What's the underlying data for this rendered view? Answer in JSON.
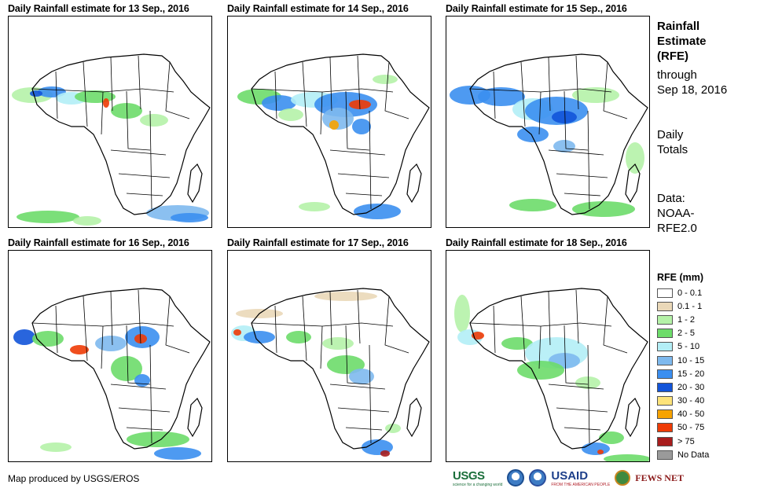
{
  "panels": [
    {
      "title": "Daily Rainfall estimate for 13 Sep., 2016"
    },
    {
      "title": "Daily Rainfall estimate for 14 Sep., 2016"
    },
    {
      "title": "Daily Rainfall estimate for 15 Sep., 2016"
    },
    {
      "title": "Daily Rainfall estimate for 16 Sep., 2016"
    },
    {
      "title": "Daily Rainfall estimate for 17 Sep., 2016"
    },
    {
      "title": "Daily Rainfall estimate for 18 Sep., 2016"
    }
  ],
  "sidebar": {
    "title_line1": "Rainfall",
    "title_line2": "Estimate",
    "title_line3": "(RFE)",
    "through_label": "through",
    "through_date": "Sep 18, 2016",
    "daily_line1": "Daily",
    "daily_line2": "Totals",
    "data_line1": "Data:",
    "data_line2": "NOAA-",
    "data_line3": "RFE2.0"
  },
  "legend": {
    "title": "RFE (mm)",
    "items": [
      {
        "label": "0 - 0.1",
        "color": "#ffffff"
      },
      {
        "label": "0.1 - 1",
        "color": "#ead8b8"
      },
      {
        "label": "1 - 2",
        "color": "#b5f2a8"
      },
      {
        "label": "2 - 5",
        "color": "#6ddc6a"
      },
      {
        "label": "5 - 10",
        "color": "#b3eef6"
      },
      {
        "label": "10 - 15",
        "color": "#7eb9ee"
      },
      {
        "label": "15 - 20",
        "color": "#3b8ff0"
      },
      {
        "label": "20 - 30",
        "color": "#1254d9"
      },
      {
        "label": "30 - 40",
        "color": "#fde37a"
      },
      {
        "label": "40 - 50",
        "color": "#f7a300"
      },
      {
        "label": "50 - 75",
        "color": "#ee3b06"
      },
      {
        "label": "> 75",
        "color": "#a81d1d"
      },
      {
        "label": "No Data",
        "color": "#9a9a9a"
      }
    ]
  },
  "footer": {
    "credit": "Map produced by USGS/EROS",
    "logo_usgs": "USGS",
    "logo_usgs_tag": "science for a changing world",
    "logo_usaid": "USAID",
    "logo_usaid_tag": "FROM THE AMERICAN PEOPLE",
    "logo_fews": "FEWS NET"
  }
}
